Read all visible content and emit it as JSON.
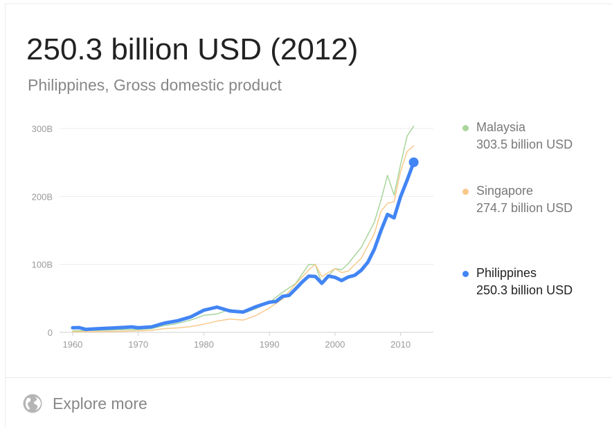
{
  "header": {
    "headline": "250.3 billion USD (2012)",
    "subtitle": "Philippines, Gross domestic product"
  },
  "legend": [
    {
      "name": "Malaysia",
      "value": "303.5 billion USD",
      "color": "#a8d59a",
      "emphasis": false
    },
    {
      "name": "Singapore",
      "value": "274.7 billion USD",
      "color": "#f8c98a",
      "emphasis": false
    },
    {
      "name": "Philippines",
      "value": "250.3 billion USD",
      "color": "#4285f4",
      "emphasis": true
    }
  ],
  "footer": {
    "label": "Explore more",
    "icon": "globe-icon"
  },
  "chart_data": {
    "type": "line",
    "title": "",
    "xlabel": "",
    "ylabel": "",
    "xlim": [
      1958,
      2015
    ],
    "ylim": [
      0,
      300
    ],
    "x_ticks": [
      1960,
      1970,
      1980,
      1990,
      2000,
      2010
    ],
    "x_tick_labels": [
      "1960",
      "1970",
      "1980",
      "1990",
      "2000",
      "2010"
    ],
    "y_ticks": [
      0,
      100,
      200,
      300
    ],
    "y_tick_labels": [
      "0",
      "100B",
      "200B",
      "300B"
    ],
    "grid": "horizontal",
    "legend_position": "right",
    "series": [
      {
        "name": "Malaysia",
        "color": "#a8d59a",
        "points": [
          [
            1960,
            2
          ],
          [
            1962,
            2.5
          ],
          [
            1964,
            3
          ],
          [
            1966,
            3.5
          ],
          [
            1968,
            4
          ],
          [
            1970,
            4
          ],
          [
            1972,
            5.5
          ],
          [
            1974,
            10
          ],
          [
            1976,
            13
          ],
          [
            1978,
            18
          ],
          [
            1980,
            25
          ],
          [
            1982,
            27
          ],
          [
            1984,
            34
          ],
          [
            1986,
            28
          ],
          [
            1988,
            35
          ],
          [
            1990,
            44
          ],
          [
            1992,
            59
          ],
          [
            1994,
            72
          ],
          [
            1996,
            100
          ],
          [
            1997,
            100
          ],
          [
            1998,
            72
          ],
          [
            2000,
            94
          ],
          [
            2001,
            92
          ],
          [
            2002,
            101
          ],
          [
            2004,
            125
          ],
          [
            2006,
            162
          ],
          [
            2007,
            194
          ],
          [
            2008,
            231
          ],
          [
            2009,
            202
          ],
          [
            2010,
            247
          ],
          [
            2011,
            289
          ],
          [
            2012,
            303.5
          ]
        ]
      },
      {
        "name": "Singapore",
        "color": "#f8c98a",
        "points": [
          [
            1960,
            0.7
          ],
          [
            1962,
            0.9
          ],
          [
            1964,
            1
          ],
          [
            1966,
            1.2
          ],
          [
            1968,
            1.6
          ],
          [
            1970,
            2
          ],
          [
            1972,
            3
          ],
          [
            1974,
            5.5
          ],
          [
            1976,
            6.5
          ],
          [
            1978,
            8.5
          ],
          [
            1980,
            12
          ],
          [
            1982,
            16.5
          ],
          [
            1984,
            19.5
          ],
          [
            1986,
            18
          ],
          [
            1988,
            25
          ],
          [
            1990,
            36
          ],
          [
            1992,
            49
          ],
          [
            1994,
            71
          ],
          [
            1996,
            92
          ],
          [
            1997,
            100
          ],
          [
            1998,
            82
          ],
          [
            2000,
            94
          ],
          [
            2001,
            88
          ],
          [
            2002,
            90
          ],
          [
            2004,
            109
          ],
          [
            2006,
            145
          ],
          [
            2007,
            178
          ],
          [
            2008,
            190
          ],
          [
            2009,
            192
          ],
          [
            2010,
            237
          ],
          [
            2011,
            266
          ],
          [
            2012,
            274.7
          ]
        ]
      },
      {
        "name": "Philippines",
        "color": "#4285f4",
        "points": [
          [
            1960,
            6.7
          ],
          [
            1961,
            7
          ],
          [
            1962,
            4.4
          ],
          [
            1964,
            5.5
          ],
          [
            1966,
            6.4
          ],
          [
            1968,
            7.3
          ],
          [
            1969,
            8
          ],
          [
            1970,
            6.7
          ],
          [
            1972,
            8
          ],
          [
            1974,
            13.6
          ],
          [
            1976,
            17
          ],
          [
            1978,
            22.7
          ],
          [
            1980,
            32.5
          ],
          [
            1982,
            37.1
          ],
          [
            1984,
            31.4
          ],
          [
            1986,
            29.9
          ],
          [
            1988,
            37.9
          ],
          [
            1990,
            44.3
          ],
          [
            1991,
            45.4
          ],
          [
            1992,
            52.9
          ],
          [
            1993,
            54.4
          ],
          [
            1994,
            64.1
          ],
          [
            1995,
            74.1
          ],
          [
            1996,
            82.8
          ],
          [
            1997,
            82.3
          ],
          [
            1998,
            72.2
          ],
          [
            1999,
            82.9
          ],
          [
            2000,
            81
          ],
          [
            2001,
            76.3
          ],
          [
            2002,
            81.4
          ],
          [
            2003,
            83.9
          ],
          [
            2004,
            91.4
          ],
          [
            2005,
            103.1
          ],
          [
            2006,
            122.2
          ],
          [
            2007,
            149.4
          ],
          [
            2008,
            173.6
          ],
          [
            2009,
            168.5
          ],
          [
            2010,
            199.6
          ],
          [
            2011,
            224.1
          ],
          [
            2012,
            250.3
          ]
        ]
      }
    ]
  }
}
